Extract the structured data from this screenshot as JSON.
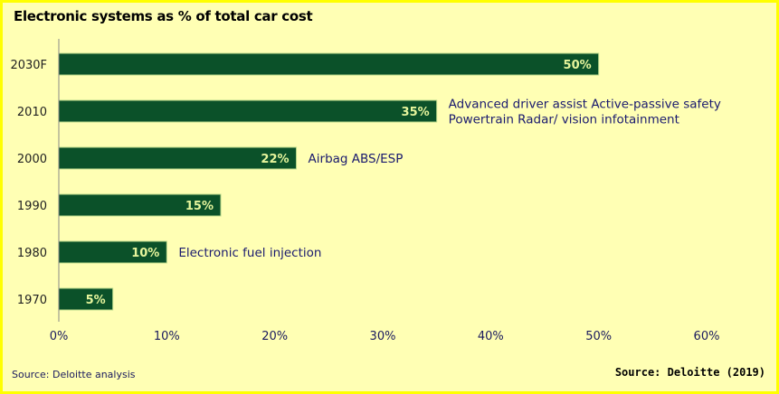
{
  "chart_data": {
    "type": "bar",
    "orientation": "horizontal",
    "title": "Electronic systems as % of total car cost",
    "categories": [
      "2030F",
      "2010",
      "2000",
      "1990",
      "1980",
      "1970"
    ],
    "values": [
      50,
      35,
      22,
      15,
      10,
      5
    ],
    "data_labels": [
      "50%",
      "35%",
      "22%",
      "15%",
      "10%",
      "5%"
    ],
    "annotations": [
      {
        "category": "2010",
        "lines": [
          "Advanced driver assist Active-passive safety",
          "Powertrain Radar/ vision infotainment"
        ]
      },
      {
        "category": "2000",
        "lines": [
          "Airbag ABS/ESP"
        ]
      },
      {
        "category": "1980",
        "lines": [
          "Electronic fuel injection"
        ]
      }
    ],
    "xlim": [
      0,
      60
    ],
    "x_ticks": [
      "0%",
      "10%",
      "20%",
      "30%",
      "40%",
      "50%",
      "60%"
    ],
    "grid": false,
    "colors": {
      "bar": "#0b5129",
      "data_label": "#e6f59c",
      "annotation": "#1a1a6e",
      "background": "#ffffb4",
      "border": "#ffff00"
    }
  },
  "source_note": "Source: Deloitte analysis",
  "source_credit": "Source: Deloitte (2019)"
}
